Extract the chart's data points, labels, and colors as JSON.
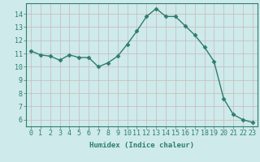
{
  "x": [
    0,
    1,
    2,
    3,
    4,
    5,
    6,
    7,
    8,
    9,
    10,
    11,
    12,
    13,
    14,
    15,
    16,
    17,
    18,
    19,
    20,
    21,
    22,
    23
  ],
  "y": [
    11.2,
    10.9,
    10.8,
    10.5,
    10.9,
    10.7,
    10.7,
    10.0,
    10.3,
    10.8,
    11.7,
    12.7,
    13.8,
    14.4,
    13.8,
    13.8,
    13.1,
    12.4,
    11.5,
    10.4,
    7.6,
    6.4,
    6.0,
    5.8
  ],
  "line_color": "#2e7d6e",
  "marker": "D",
  "marker_size": 2.5,
  "bg_color": "#ceeaea",
  "grid_color": "#c8b8b8",
  "xlabel": "Humidex (Indice chaleur)",
  "ylim": [
    5.5,
    14.8
  ],
  "xlim": [
    -0.5,
    23.5
  ],
  "yticks": [
    6,
    7,
    8,
    9,
    10,
    11,
    12,
    13,
    14
  ],
  "xticks": [
    0,
    1,
    2,
    3,
    4,
    5,
    6,
    7,
    8,
    9,
    10,
    11,
    12,
    13,
    14,
    15,
    16,
    17,
    18,
    19,
    20,
    21,
    22,
    23
  ],
  "xlabel_fontsize": 6.5,
  "tick_fontsize": 6.0,
  "line_width": 1.0
}
